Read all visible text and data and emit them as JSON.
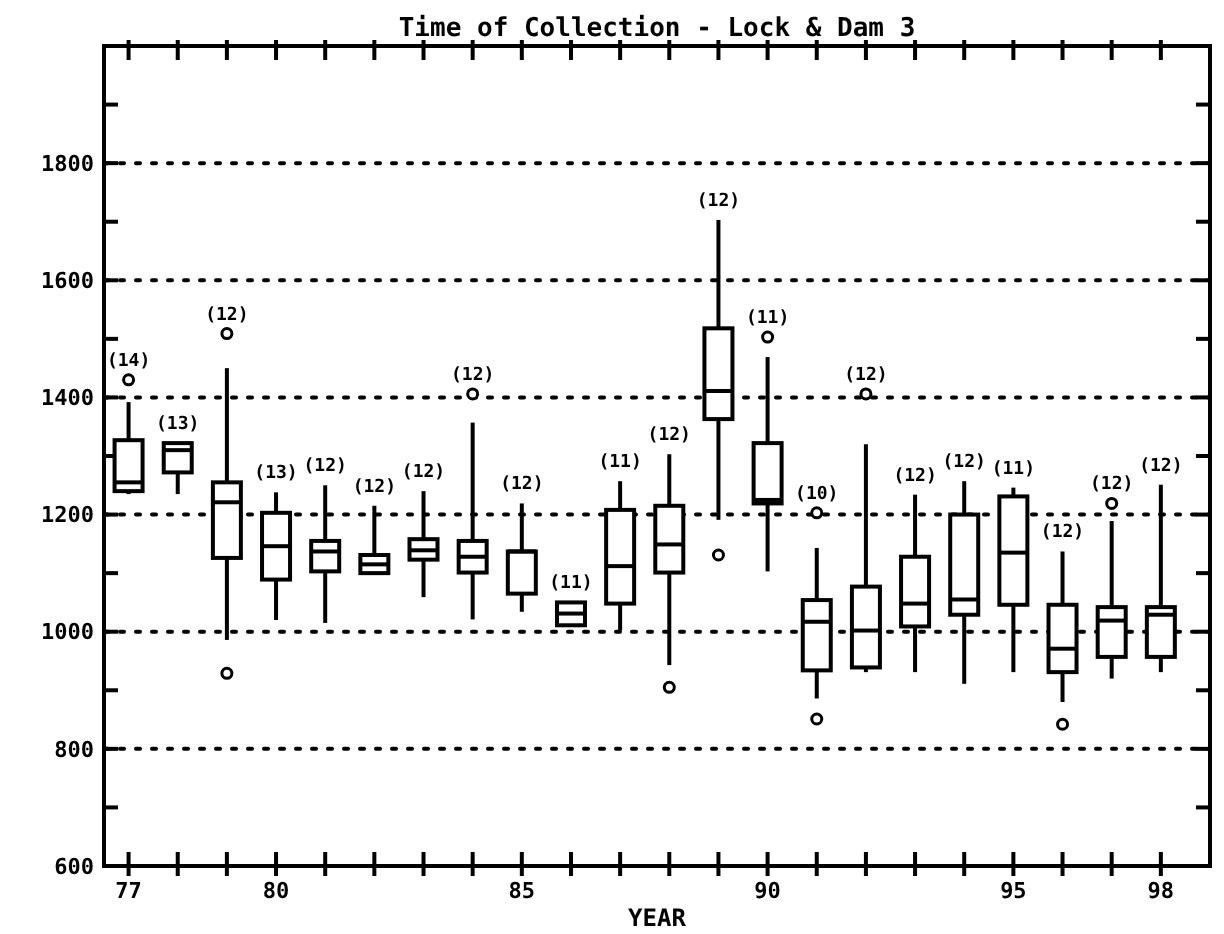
{
  "chart_data": {
    "type": "box",
    "title": "Time of Collection - Lock & Dam 3",
    "xlabel": "YEAR",
    "x": [
      77,
      78,
      79,
      80,
      81,
      82,
      83,
      84,
      85,
      86,
      87,
      88,
      89,
      90,
      91,
      92,
      93,
      94,
      95,
      96,
      97,
      98
    ],
    "boxes": [
      {
        "low": 1235,
        "q1": 1240,
        "median": 1255,
        "q3": 1327,
        "high": 1392,
        "outliers": [
          1430
        ]
      },
      {
        "low": 1235,
        "q1": 1272,
        "median": 1310,
        "q3": 1322,
        "high": 1322
      },
      {
        "low": 986,
        "q1": 1126,
        "median": 1221,
        "q3": 1255,
        "high": 1450,
        "outliers": [
          1509,
          929
        ]
      },
      {
        "low": 1020,
        "q1": 1089,
        "median": 1146,
        "q3": 1203,
        "high": 1238
      },
      {
        "low": 1015,
        "q1": 1103,
        "median": 1137,
        "q3": 1155,
        "high": 1250
      },
      {
        "low": 1100,
        "q1": 1100,
        "median": 1115,
        "q3": 1131,
        "high": 1215
      },
      {
        "low": 1059,
        "q1": 1123,
        "median": 1139,
        "q3": 1158,
        "high": 1240
      },
      {
        "low": 1021,
        "q1": 1101,
        "median": 1128,
        "q3": 1155,
        "high": 1357,
        "outliers": [
          1406
        ]
      },
      {
        "low": 1034,
        "q1": 1065,
        "median": 1137,
        "q3": 1137,
        "high": 1219
      },
      {
        "low": 1011,
        "q1": 1011,
        "median": 1031,
        "q3": 1050,
        "high": 1050
      },
      {
        "low": 1002,
        "q1": 1048,
        "median": 1112,
        "q3": 1208,
        "high": 1257
      },
      {
        "low": 943,
        "q1": 1101,
        "median": 1149,
        "q3": 1215,
        "high": 1303,
        "outliers": [
          905
        ]
      },
      {
        "low": 1191,
        "q1": 1363,
        "median": 1411,
        "q3": 1518,
        "high": 1703,
        "outliers": [
          1131
        ]
      },
      {
        "low": 1103,
        "q1": 1219,
        "median": 1225,
        "q3": 1322,
        "high": 1469,
        "outliers": [
          1503
        ]
      },
      {
        "low": 886,
        "q1": 934,
        "median": 1017,
        "q3": 1054,
        "high": 1143,
        "outliers": [
          1203,
          851
        ]
      },
      {
        "low": 931,
        "q1": 939,
        "median": 1002,
        "q3": 1077,
        "high": 1320,
        "outliers": [
          1406
        ]
      },
      {
        "low": 931,
        "q1": 1009,
        "median": 1048,
        "q3": 1128,
        "high": 1234
      },
      {
        "low": 911,
        "q1": 1029,
        "median": 1055,
        "q3": 1200,
        "high": 1257
      },
      {
        "low": 931,
        "q1": 1046,
        "median": 1135,
        "q3": 1231,
        "high": 1246
      },
      {
        "low": 880,
        "q1": 931,
        "median": 971,
        "q3": 1046,
        "high": 1137,
        "outliers": [
          842
        ]
      },
      {
        "low": 920,
        "q1": 957,
        "median": 1019,
        "q3": 1042,
        "high": 1189,
        "outliers": [
          1219
        ]
      },
      {
        "low": 931,
        "q1": 957,
        "median": 1029,
        "q3": 1042,
        "high": 1251
      }
    ],
    "xlim": [
      76.5,
      99
    ],
    "xticks": [
      77,
      {
        "value": 78,
        "label": null
      },
      {
        "value": 79,
        "label": null
      },
      80,
      {
        "value": 81,
        "label": null
      },
      {
        "value": 82,
        "label": null
      },
      {
        "value": 83,
        "label": null
      },
      {
        "value": 84,
        "label": null
      },
      85,
      {
        "value": 86,
        "label": null
      },
      {
        "value": 87,
        "label": null
      },
      {
        "value": 88,
        "label": null
      },
      {
        "value": 89,
        "label": null
      },
      90,
      {
        "value": 91,
        "label": null
      },
      {
        "value": 92,
        "label": null
      },
      {
        "value": 93,
        "label": null
      },
      {
        "value": 94,
        "label": null
      },
      95,
      {
        "value": 96,
        "label": null
      },
      {
        "value": 97,
        "label": null
      },
      98
    ],
    "ylim": [
      600,
      2000
    ],
    "yticks": [
      600,
      {
        "value": 700,
        "label": null
      },
      800,
      {
        "value": 900,
        "label": null
      },
      1000,
      {
        "value": 1100,
        "label": null
      },
      1200,
      {
        "value": 1300,
        "label": null
      },
      1400,
      {
        "value": 1500,
        "label": null
      },
      1600,
      {
        "value": 1700,
        "label": null
      },
      1800,
      {
        "value": 1900,
        "label": null
      },
      {
        "value": 2000,
        "label": null
      }
    ],
    "grid": "y",
    "line_style": "dotted",
    "color": "#000000",
    "annotations": [
      "(14)",
      "(13)",
      "(12)",
      "(13)",
      "(12)",
      "(12)",
      "(12)",
      "(12)",
      "(12)",
      "(11)",
      "(11)",
      "(12)",
      "(12)",
      "(11)",
      "(10)",
      "(12)",
      "(12)",
      "(12)",
      "(11)",
      "(12)",
      "(12)",
      "(12)"
    ]
  }
}
